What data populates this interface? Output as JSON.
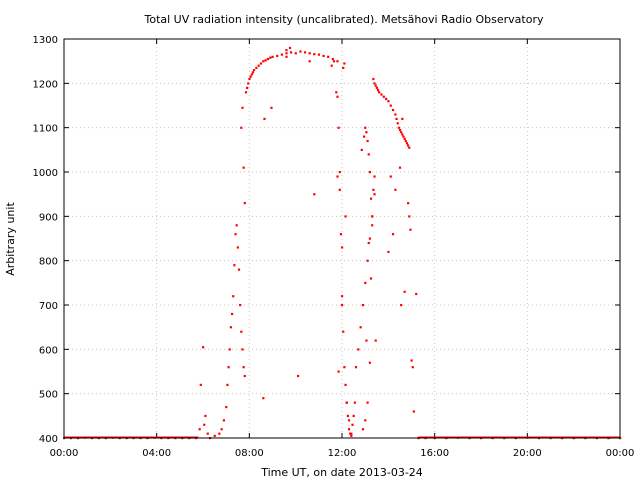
{
  "chart_data": {
    "type": "scatter",
    "title": "Total UV radiation intensity (uncalibrated). Metsähovi Radio Observatory",
    "xlabel": "Time UT, on date 2013-03-24",
    "ylabel": "Arbitrary unit",
    "xlim": [
      0,
      24
    ],
    "ylim": [
      400,
      1300
    ],
    "grid": true,
    "x_tick_values": [
      0,
      4,
      8,
      12,
      16,
      20,
      24
    ],
    "x_tick_labels": [
      "00:00",
      "04:00",
      "08:00",
      "12:00",
      "16:00",
      "20:00",
      "00:00"
    ],
    "y_tick_values": [
      400,
      500,
      600,
      700,
      800,
      900,
      1000,
      1100,
      1200,
      1300
    ],
    "y_tick_labels": [
      "400",
      "500",
      "600",
      "700",
      "800",
      "900",
      "1000",
      "1100",
      "1200",
      "1300"
    ],
    "series": [
      {
        "color": "#ff0000",
        "x": [
          0.0,
          0.3,
          0.6,
          0.9,
          1.2,
          1.5,
          1.8,
          2.1,
          2.4,
          2.7,
          3.0,
          3.3,
          3.6,
          3.9,
          4.2,
          4.5,
          4.8,
          5.1,
          5.4,
          5.7,
          5.85,
          5.9,
          6.0,
          6.05,
          6.1,
          6.2,
          6.3,
          6.5,
          6.7,
          6.8,
          6.9,
          7.0,
          7.05,
          7.1,
          7.15,
          7.2,
          7.25,
          7.3,
          7.35,
          7.4,
          7.45,
          7.5,
          7.55,
          7.6,
          7.65,
          7.7,
          7.75,
          7.8,
          7.65,
          7.7,
          7.75,
          7.8,
          7.85,
          7.9,
          7.95,
          8.0,
          8.05,
          8.1,
          8.15,
          8.2,
          8.3,
          8.4,
          8.5,
          8.6,
          8.7,
          8.8,
          8.9,
          9.0,
          9.2,
          9.4,
          9.6,
          9.8,
          10.0,
          10.2,
          10.4,
          10.6,
          10.8,
          11.0,
          11.2,
          11.4,
          11.6,
          11.8,
          9.6,
          9.75,
          10.6,
          8.6,
          8.95,
          8.65,
          9.6,
          10.1,
          10.8,
          11.55,
          11.65,
          11.75,
          11.8,
          11.85,
          11.9,
          11.95,
          12.0,
          12.05,
          12.1,
          12.15,
          12.2,
          12.25,
          12.3,
          12.35,
          12.4,
          12.45,
          12.5,
          12.55,
          12.6,
          12.7,
          12.8,
          12.9,
          13.0,
          13.1,
          13.2,
          13.3,
          13.4,
          11.8,
          11.9,
          12.0,
          12.1,
          12.05,
          12.0,
          12.15,
          11.85,
          12.2,
          12.3,
          12.4,
          12.85,
          12.95,
          13.0,
          13.05,
          13.1,
          13.15,
          13.2,
          13.25,
          13.3,
          13.35,
          13.4,
          13.15,
          13.25,
          13.45,
          13.2,
          13.1,
          13.0,
          12.9,
          13.3,
          13.05,
          13.35,
          13.4,
          13.45,
          13.5,
          13.55,
          13.6,
          13.7,
          13.8,
          13.9,
          14.0,
          14.1,
          14.2,
          14.3,
          14.35,
          14.4,
          14.45,
          14.5,
          14.55,
          14.6,
          14.65,
          14.7,
          14.75,
          14.8,
          14.85,
          14.9,
          14.1,
          14.3,
          14.5,
          14.6,
          14.85,
          14.9,
          14.95,
          15.0,
          15.05,
          15.1,
          14.2,
          14.0,
          14.7,
          14.55,
          15.2,
          15.3,
          15.6,
          16.0,
          16.5,
          17.0,
          17.5,
          18.0,
          18.5,
          19.0,
          19.5,
          20.0,
          20.5,
          21.0,
          21.5,
          22.0,
          22.5,
          23.0,
          23.5,
          24.0
        ],
        "y": [
          400,
          400,
          400,
          401,
          400,
          400,
          400,
          401,
          400,
          400,
          400,
          400,
          400,
          401,
          400,
          400,
          400,
          400,
          400,
          400,
          420,
          520,
          605,
          430,
          450,
          410,
          400,
          405,
          410,
          420,
          440,
          470,
          520,
          560,
          600,
          650,
          680,
          720,
          790,
          860,
          880,
          830,
          780,
          700,
          640,
          600,
          560,
          540,
          1100,
          1145,
          1010,
          930,
          1180,
          1190,
          1200,
          1210,
          1215,
          1220,
          1225,
          1230,
          1235,
          1240,
          1245,
          1250,
          1252,
          1255,
          1258,
          1260,
          1262,
          1265,
          1268,
          1270,
          1268,
          1272,
          1270,
          1268,
          1266,
          1265,
          1262,
          1260,
          1255,
          1250,
          1275,
          1280,
          1250,
          490,
          1145,
          1120,
          1260,
          540,
          950,
          1240,
          1250,
          1180,
          1170,
          1100,
          1000,
          860,
          720,
          640,
          560,
          520,
          480,
          450,
          420,
          410,
          405,
          430,
          450,
          480,
          560,
          600,
          650,
          700,
          750,
          800,
          850,
          900,
          950,
          990,
          960,
          830,
          1245,
          1235,
          700,
          900,
          550,
          480,
          440,
          410,
          1050,
          1080,
          1100,
          1090,
          1070,
          1040,
          1000,
          940,
          900,
          960,
          990,
          840,
          760,
          620,
          570,
          480,
          440,
          420,
          880,
          620,
          1210,
          1200,
          1195,
          1190,
          1185,
          1180,
          1175,
          1170,
          1165,
          1160,
          1150,
          1140,
          1130,
          1120,
          1110,
          1100,
          1095,
          1090,
          1085,
          1080,
          1075,
          1070,
          1065,
          1060,
          1055,
          990,
          960,
          1010,
          1120,
          930,
          900,
          870,
          575,
          560,
          460,
          860,
          820,
          730,
          700,
          725,
          400,
          400,
          400,
          400,
          401,
          400,
          400,
          400,
          400,
          400,
          401,
          400,
          400,
          400,
          400,
          400,
          400,
          400,
          400
        ]
      }
    ]
  }
}
